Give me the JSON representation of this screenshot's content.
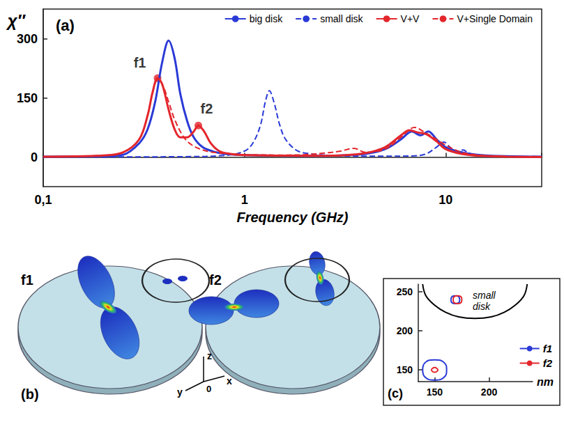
{
  "chart_data": [
    {
      "type": "line",
      "title": "(a)",
      "x_label": "Frequency (GHz)",
      "y_label": "χ″",
      "log": "x",
      "xlim": [
        0.1,
        30
      ],
      "xticks": [
        {
          "value": 0.1,
          "label": "0,1"
        },
        1,
        10
      ],
      "ylim": [
        -75,
        375
      ],
      "yticks": [
        0,
        150,
        300
      ],
      "grid": false,
      "legend": "top-right",
      "series": [
        {
          "name": "big disk",
          "color": "#2a3ad6",
          "line_style": "solid",
          "x": [
            0.1,
            0.2,
            0.25,
            0.3,
            0.33,
            0.36,
            0.39,
            0.42,
            0.45,
            0.48,
            0.52,
            0.56,
            0.62,
            0.7,
            0.8,
            1,
            2,
            3,
            4,
            5,
            6,
            6.8,
            7.5,
            8.2,
            9,
            10,
            12,
            15,
            20,
            30
          ],
          "values": [
            1,
            2,
            6,
            35,
            70,
            140,
            240,
            295,
            250,
            160,
            90,
            50,
            25,
            14,
            8,
            5,
            3,
            4,
            8,
            20,
            45,
            65,
            55,
            65,
            45,
            25,
            12,
            5,
            2,
            1
          ]
        },
        {
          "name": "small disk",
          "color": "#2a3ad6",
          "line_style": "dashed",
          "x": [
            0.1,
            0.5,
            0.8,
            1,
            1.1,
            1.2,
            1.27,
            1.33,
            1.4,
            1.5,
            1.6,
            1.8,
            2,
            3,
            5,
            7,
            8,
            9,
            9.8,
            10.5,
            11.3,
            12.2,
            13,
            15,
            20,
            30
          ],
          "values": [
            0,
            1,
            4,
            15,
            35,
            80,
            140,
            168,
            140,
            80,
            45,
            18,
            10,
            3,
            2,
            3,
            8,
            25,
            38,
            25,
            12,
            18,
            10,
            3,
            1,
            0
          ]
        },
        {
          "name": "V+V",
          "color": "#e3262b",
          "line_style": "solid",
          "x": [
            0.1,
            0.2,
            0.25,
            0.3,
            0.33,
            0.35,
            0.37,
            0.39,
            0.42,
            0.45,
            0.48,
            0.52,
            0.56,
            0.59,
            0.63,
            0.68,
            0.75,
            0.85,
            1,
            2,
            3,
            4,
            5,
            6,
            6.6,
            7.3,
            8,
            9,
            10,
            12,
            15,
            20,
            30
          ],
          "values": [
            1,
            4,
            12,
            45,
            105,
            165,
            200,
            185,
            120,
            70,
            50,
            50,
            65,
            80,
            65,
            35,
            15,
            8,
            5,
            3,
            4,
            10,
            25,
            55,
            68,
            62,
            58,
            40,
            20,
            8,
            3,
            1,
            0
          ]
        },
        {
          "name": "V+Single Domain",
          "color": "#e3262b",
          "line_style": "dashed",
          "x": [
            0.1,
            0.2,
            0.25,
            0.3,
            0.33,
            0.35,
            0.37,
            0.39,
            0.42,
            0.45,
            0.5,
            0.55,
            0.62,
            0.7,
            0.85,
            1,
            1.5,
            2,
            2.5,
            3,
            3.5,
            4,
            5,
            6,
            7,
            8,
            9,
            10,
            12,
            15,
            20,
            30
          ],
          "values": [
            1,
            4,
            12,
            45,
            105,
            165,
            195,
            185,
            140,
            95,
            50,
            30,
            18,
            12,
            8,
            6,
            5,
            6,
            10,
            15,
            22,
            12,
            20,
            50,
            75,
            60,
            45,
            30,
            12,
            4,
            1,
            0
          ]
        }
      ],
      "annotations": [
        {
          "text": "f1",
          "x": 0.37,
          "y": 200,
          "color": "#e3262b",
          "marker": "circle"
        },
        {
          "text": "f2",
          "x": 0.59,
          "y": 80,
          "color": "#e3262b",
          "marker": "circle"
        }
      ]
    },
    {
      "type": "line",
      "title": "(c)",
      "x_label": "nm",
      "xlim": [
        135,
        240
      ],
      "xticks": [
        150,
        200
      ],
      "ylim": [
        135,
        260
      ],
      "yticks": [
        150,
        200,
        250
      ],
      "grid": false,
      "legend": "bottom-right",
      "outline": {
        "label": "small disk",
        "color": "#000000",
        "x": [
          139,
          142,
          150,
          160,
          172,
          187,
          202,
          214,
          224,
          232,
          235
        ],
        "y": [
          260,
          245,
          233,
          224,
          218,
          216,
          218,
          224,
          233,
          245,
          260
        ]
      },
      "series": [
        {
          "name": "f1",
          "color": "#2a3ad6",
          "loops": [
            {
              "x": [
                165,
                166,
                169,
                172,
                173,
                172,
                169,
                166,
                165
              ],
              "y": [
                240,
                244,
                245,
                244,
                240,
                236,
                235,
                236,
                240
              ]
            },
            {
              "x": [
                139,
                141,
                150,
                159,
                161,
                159,
                150,
                141,
                139
              ],
              "y": [
                150,
                159,
                163,
                159,
                150,
                141,
                137,
                141,
                150
              ]
            }
          ]
        },
        {
          "name": "f2",
          "color": "#e3262b",
          "loops": [
            {
              "x": [
                167,
                168,
                171,
                174,
                175,
                174,
                171,
                168,
                167
              ],
              "y": [
                240,
                244,
                245,
                244,
                240,
                236,
                235,
                236,
                240
              ]
            },
            {
              "x": [
                147,
                148,
                150,
                152,
                153,
                152,
                150,
                148,
                147
              ],
              "y": [
                150,
                152,
                153,
                152,
                150,
                148,
                147,
                148,
                150
              ]
            }
          ]
        }
      ]
    }
  ],
  "diagram": {
    "label": "(b)",
    "panels": [
      {
        "title": "f1"
      },
      {
        "title": "f2"
      }
    ],
    "axes": {
      "z": "z",
      "y": "y",
      "x": "x",
      "origin": "0"
    }
  }
}
